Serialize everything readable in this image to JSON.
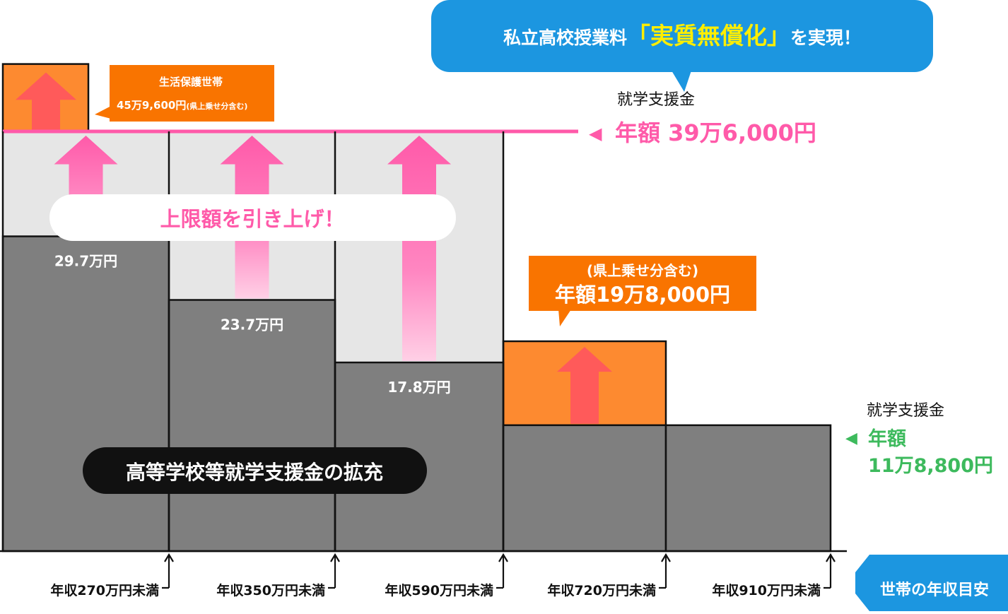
{
  "colors": {
    "bar_gray": "#7f7f7f",
    "raise_light_gray": "#e6e6e6",
    "orange": "#fd8a30",
    "orange_dark": "#f97400",
    "pink": "#ff5aa9",
    "green": "#3dba5d",
    "blue": "#1c96e0",
    "black": "#111111"
  },
  "headline": {
    "prefix": "私立高校授業料",
    "highlight": "「実質無償化」",
    "suffix": "を実現！"
  },
  "upper_support": {
    "label": "就学支援金",
    "value": "年額 39万6,000円",
    "marker": "◀"
  },
  "lower_support": {
    "label": "就学支援金",
    "value_line1": "年額",
    "value_line2": "11万8,800円",
    "marker": "◀"
  },
  "welfare_note": {
    "line1": "生活保護世帯",
    "line2_main": "45万9,600円",
    "line2_small": "(県上乗せ分含む)"
  },
  "orange_note": {
    "line1": "(県上乗せ分含む)",
    "line2": "年額19万8,000円"
  },
  "raise_banner": "上限額を引き上げ！",
  "expansion_banner": "高等学校等就学支援金の拡充",
  "axis_tag": "世帯の年収目安",
  "chart_data": {
    "type": "bar",
    "unit": "万円",
    "categories": [
      "年収270万円未満",
      "年収350万円未満",
      "年収590万円未満",
      "年収720万円未満",
      "年収910万円未満"
    ],
    "series": [
      {
        "name": "",
        "values": [
          29.7,
          23.7,
          17.8,
          11.88,
          11.88
        ]
      },
      {
        "name": "",
        "values": [
          39.6,
          39.6,
          39.6,
          19.8,
          11.88
        ]
      }
    ],
    "bar_value_labels": [
      "29.7万円",
      "23.7万円",
      "17.8万円",
      "",
      ""
    ],
    "welfare_top_value": 45.96,
    "upper_line_value": 39.6,
    "legend": "none",
    "grid": false
  }
}
